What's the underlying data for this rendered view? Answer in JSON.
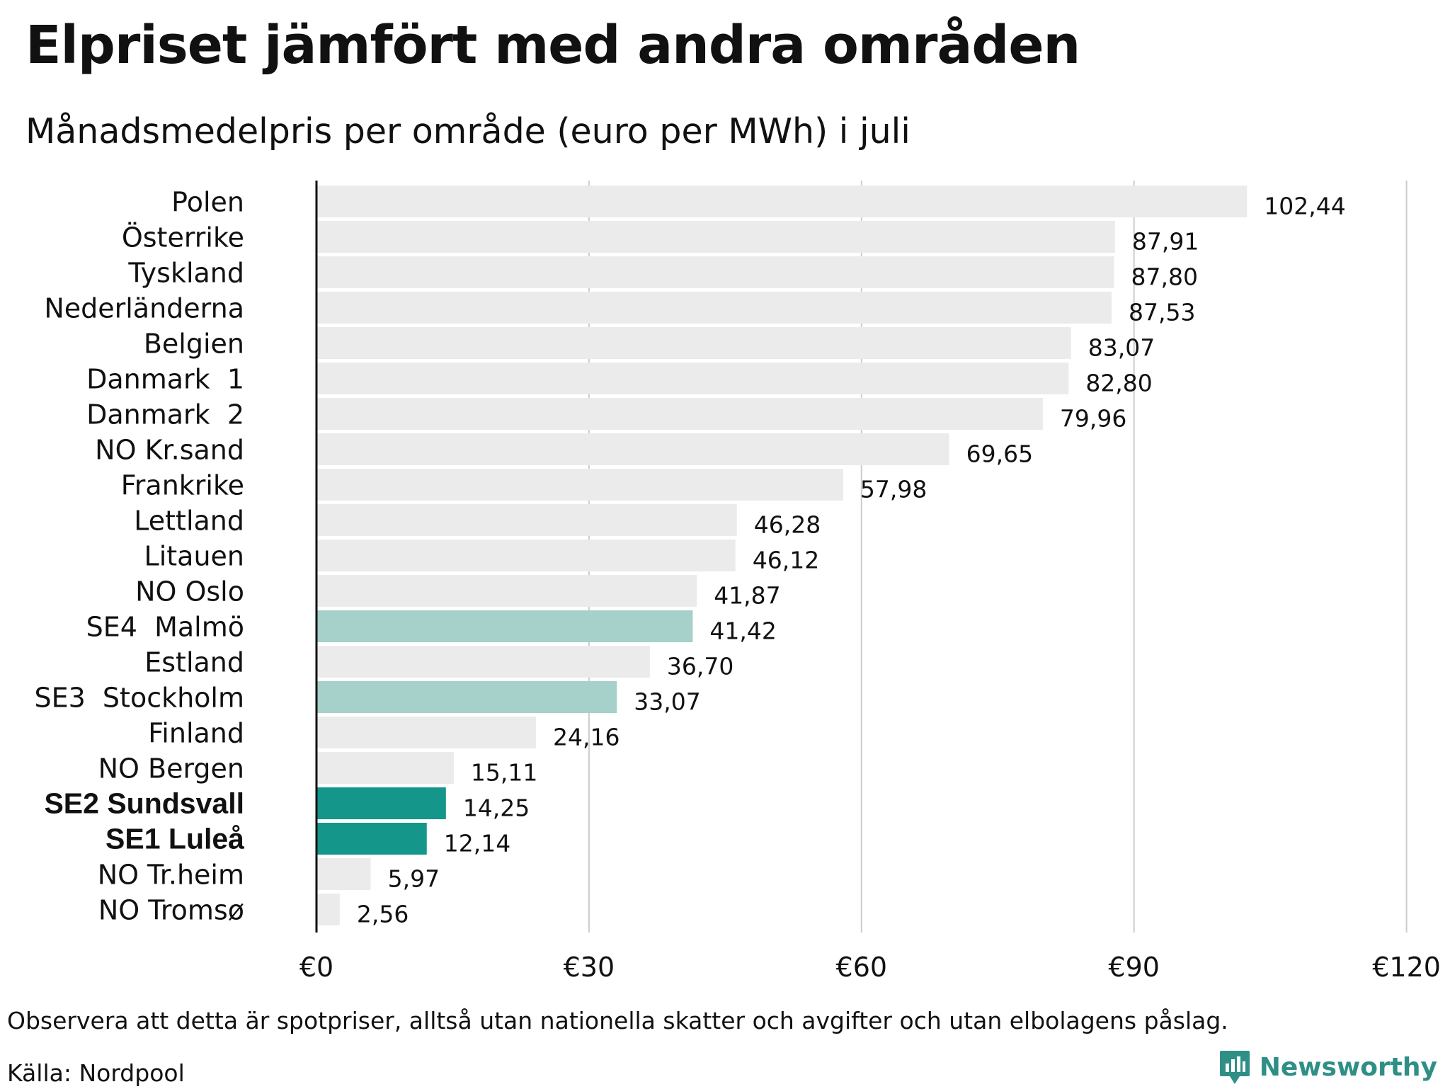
{
  "header": {
    "title": "Elpriset jämfört med andra områden",
    "subtitle": "Månadsmedelpris per område (euro per MWh) i juli"
  },
  "footer": {
    "note": "Observera att detta är spotpriser, alltså utan nationella skatter och avgifter och utan elbolagens påslag.",
    "source": "Källa: Nordpool",
    "brand": "Newsworthy"
  },
  "colors": {
    "bar_default": "#ebebeb",
    "bar_highlight_light": "#a6d0ca",
    "bar_highlight_dark": "#14968a",
    "axis_line": "#111111",
    "grid_line": "#cccccc",
    "brand": "#2f8f86"
  },
  "icons": {
    "brand_logo": "newsworthy-chat-bar-icon"
  },
  "chart_data": {
    "type": "bar",
    "orientation": "horizontal",
    "title": "Elpriset jämfört med andra områden",
    "subtitle": "Månadsmedelpris per område (euro per MWh) i juli",
    "xlabel": "",
    "ylabel": "",
    "xlim": [
      0,
      120
    ],
    "x_ticks": [
      0,
      30,
      60,
      90,
      120
    ],
    "x_tick_labels": [
      "€0",
      "€30",
      "€60",
      "€90",
      "€120"
    ],
    "grid": "vertical",
    "legend": "none",
    "categories": [
      "Polen",
      "Österrike",
      "Tyskland",
      "Nederländerna",
      "Belgien",
      "Danmark  1",
      "Danmark  2",
      "NO Kr.sand",
      "Frankrike",
      "Lettland",
      "Litauen",
      "NO Oslo",
      "SE4  Malmö",
      "Estland",
      "SE3  Stockholm",
      "Finland",
      "NO Bergen",
      "SE2 Sundsvall",
      "SE1 Luleå",
      "NO Tr.heim",
      "NO Tromsø"
    ],
    "values": [
      102.44,
      87.91,
      87.8,
      87.53,
      83.07,
      82.8,
      79.96,
      69.65,
      57.98,
      46.28,
      46.12,
      41.87,
      41.42,
      36.7,
      33.07,
      24.16,
      15.11,
      14.25,
      12.14,
      5.97,
      2.56
    ],
    "value_labels": [
      "102,44",
      "87,91",
      "87,80",
      "87,53",
      "83,07",
      "82,80",
      "79,96",
      "69,65",
      "57,98",
      "46,28",
      "46,12",
      "41,87",
      "41,42",
      "36,70",
      "33,07",
      "24,16",
      "15,11",
      "14,25",
      "12,14",
      "5,97",
      "2,56"
    ],
    "highlight": [
      "none",
      "none",
      "none",
      "none",
      "none",
      "none",
      "none",
      "none",
      "none",
      "none",
      "none",
      "none",
      "light",
      "none",
      "light",
      "none",
      "none",
      "dark",
      "dark",
      "none",
      "none"
    ],
    "bold_labels": [
      "SE2 Sundsvall",
      "SE1 Luleå"
    ]
  }
}
